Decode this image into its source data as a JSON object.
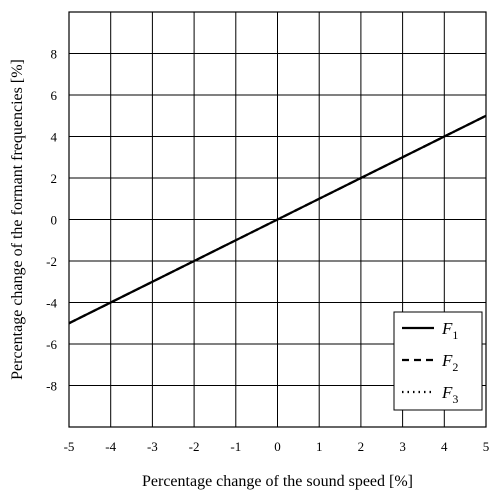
{
  "chart_data": {
    "type": "line",
    "title": "",
    "xlabel": "Percentage change of the sound speed [%]",
    "ylabel": "Percentage change of the formant frequencies [%]",
    "xlim": [
      -5,
      5
    ],
    "ylim": [
      -10,
      10
    ],
    "xticks": [
      -5,
      -4,
      -3,
      -2,
      -1,
      0,
      1,
      2,
      3,
      4,
      5
    ],
    "xtick_labels": [
      "-5",
      "-4",
      "-3",
      "-2",
      "-1",
      "0",
      "1",
      "2",
      "3",
      "4",
      "5"
    ],
    "yticks": [
      -8,
      -6,
      -4,
      -2,
      0,
      2,
      4,
      6,
      8
    ],
    "ytick_labels": [
      "-8",
      "-6",
      "-4",
      "-2",
      "0",
      "2",
      "4",
      "6",
      "8"
    ],
    "grid": true,
    "legend_position": "bottom-right",
    "series": [
      {
        "name": "F1",
        "label_main": "F",
        "label_sub": "1",
        "style": "solid",
        "x": [
          -5,
          5
        ],
        "y": [
          -5,
          5
        ]
      },
      {
        "name": "F2",
        "label_main": "F",
        "label_sub": "2",
        "style": "dashed",
        "x": [
          -5,
          5
        ],
        "y": [
          -5,
          5
        ]
      },
      {
        "name": "F3",
        "label_main": "F",
        "label_sub": "3",
        "style": "dotted",
        "x": [
          -5,
          5
        ],
        "y": [
          -5,
          5
        ]
      }
    ],
    "colors": {
      "line": "#000000",
      "grid": "#000000",
      "background": "#ffffff"
    }
  }
}
